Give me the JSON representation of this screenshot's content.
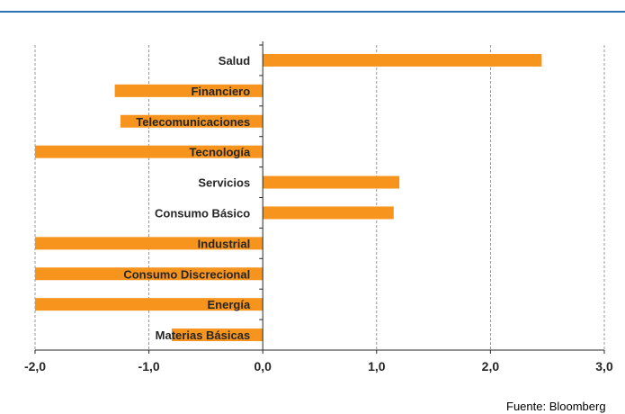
{
  "title": "",
  "source": "Fuente: Bloomberg",
  "colors": {
    "bar": "#f7941d",
    "axis": "#262626",
    "grid": "#7f7f7f",
    "title_rule": "#2e74b5"
  },
  "chart_data": {
    "type": "bar",
    "orientation": "horizontal",
    "categories": [
      "Salud",
      "Financiero",
      "Telecomunicaciones",
      "Tecnología",
      "Servicios",
      "Consumo Básico",
      "Industrial",
      "Consumo Discrecional",
      "Energía",
      "Materias Básicas"
    ],
    "values": [
      2.45,
      -1.3,
      -1.25,
      -2.0,
      1.2,
      1.15,
      -2.0,
      -2.0,
      -2.0,
      -0.8
    ],
    "xlim": [
      -2.0,
      3.0
    ],
    "xticks": [
      -2.0,
      -1.0,
      0.0,
      1.0,
      2.0,
      3.0
    ],
    "xtick_labels": [
      "-2,0",
      "-1,0",
      "0,0",
      "1,0",
      "2,0",
      "3,0"
    ],
    "xlabel": "",
    "ylabel": "",
    "grid": "vertical dashed",
    "legend": "none"
  }
}
